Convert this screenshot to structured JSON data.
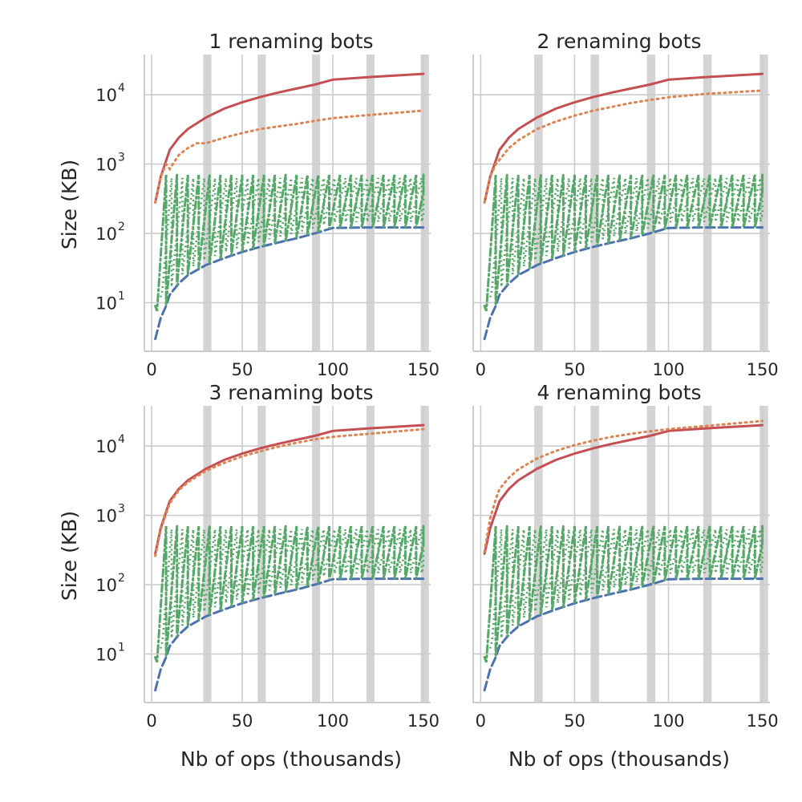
{
  "chart_data": [
    {
      "type": "line",
      "title": "1 renaming bots",
      "xlabel": "",
      "ylabel": "Size (KB)",
      "x_ticks": [
        "0",
        "50",
        "100",
        "150"
      ],
      "y_ticks": [
        {
          "base": "10",
          "exp": "1"
        },
        {
          "base": "10",
          "exp": "2"
        },
        {
          "base": "10",
          "exp": "3"
        },
        {
          "base": "10",
          "exp": "4"
        }
      ],
      "xlim": [
        -4,
        154
      ],
      "ylim_log10": [
        0.3,
        4.58
      ],
      "y_scale": "log",
      "grid": true,
      "shaded_x_ranges": [
        [
          28.5,
          33
        ],
        [
          58.5,
          63
        ],
        [
          88.5,
          93
        ],
        [
          118.5,
          123
        ],
        [
          148.5,
          153
        ]
      ],
      "series": [
        {
          "style": "solid",
          "color": "#c44e52",
          "x": [
            2,
            5,
            10,
            15,
            20,
            30,
            40,
            50,
            60,
            70,
            80,
            90,
            100,
            120,
            150
          ],
          "y": [
            280,
            650,
            1600,
            2400,
            3200,
            4700,
            6300,
            7800,
            9300,
            10800,
            12300,
            14000,
            16500,
            18000,
            20000
          ]
        },
        {
          "style": "dotted",
          "color": "#dd8452",
          "x": [
            2,
            5,
            8,
            10,
            15,
            20,
            25,
            30,
            40,
            50,
            60,
            70,
            80,
            90,
            100,
            120,
            150
          ],
          "y": [
            280,
            650,
            1000,
            850,
            1350,
            1700,
            2000,
            2000,
            2400,
            2800,
            3200,
            3500,
            3800,
            4200,
            4600,
            5100,
            5900
          ]
        },
        {
          "style": "dashed",
          "color": "#4c72b0",
          "x": [
            2,
            5,
            8,
            10,
            15,
            20,
            30,
            40,
            50,
            60,
            70,
            80,
            90,
            100,
            120,
            150
          ],
          "y": [
            3,
            6,
            9,
            13,
            19,
            25,
            35,
            44,
            54,
            64,
            74,
            85,
            100,
            120,
            122,
            122
          ]
        },
        {
          "style": "dashdot",
          "color": "#55a868",
          "name": "",
          "sawtooth": {
            "period": 6,
            "start_x": 2,
            "end_x": 150,
            "peak": 700
          }
        }
      ]
    },
    {
      "type": "line",
      "title": "2 renaming bots",
      "xlabel": "",
      "ylabel": "",
      "x_ticks": [
        "0",
        "50",
        "100",
        "150"
      ],
      "y_ticks": [],
      "xlim": [
        -4,
        154
      ],
      "ylim_log10": [
        0.3,
        4.58
      ],
      "y_scale": "log",
      "grid": true,
      "shaded_x_ranges": [
        [
          28.5,
          33
        ],
        [
          58.5,
          63
        ],
        [
          88.5,
          93
        ],
        [
          118.5,
          123
        ],
        [
          148.5,
          153
        ]
      ],
      "series": [
        {
          "style": "solid",
          "color": "#c44e52",
          "x": [
            2,
            5,
            10,
            15,
            20,
            30,
            40,
            50,
            60,
            70,
            80,
            90,
            100,
            120,
            150
          ],
          "y": [
            280,
            650,
            1600,
            2400,
            3200,
            4700,
            6300,
            7800,
            9300,
            10800,
            12300,
            14000,
            16500,
            18000,
            20000
          ]
        },
        {
          "style": "dotted",
          "color": "#dd8452",
          "x": [
            2,
            5,
            8,
            10,
            15,
            20,
            30,
            40,
            50,
            60,
            70,
            80,
            90,
            100,
            120,
            150
          ],
          "y": [
            280,
            650,
            1000,
            1150,
            1700,
            2200,
            3200,
            4100,
            5000,
            5900,
            6700,
            7600,
            8400,
            9200,
            10300,
            11500
          ]
        },
        {
          "style": "dashed",
          "color": "#4c72b0",
          "x": [
            2,
            5,
            8,
            10,
            15,
            20,
            30,
            40,
            50,
            60,
            70,
            80,
            90,
            100,
            120,
            150
          ],
          "y": [
            3,
            6,
            9,
            13,
            19,
            25,
            35,
            44,
            54,
            64,
            74,
            85,
            100,
            120,
            122,
            122
          ]
        },
        {
          "style": "dashdot",
          "color": "#55a868",
          "name": "",
          "sawtooth": {
            "period": 6,
            "start_x": 2,
            "end_x": 150,
            "peak": 700
          }
        }
      ]
    },
    {
      "type": "line",
      "title": "3 renaming bots",
      "xlabel": "Nb of ops (thousands)",
      "ylabel": "Size (KB)",
      "x_ticks": [
        "0",
        "50",
        "100",
        "150"
      ],
      "y_ticks": [
        {
          "base": "10",
          "exp": "1"
        },
        {
          "base": "10",
          "exp": "2"
        },
        {
          "base": "10",
          "exp": "3"
        },
        {
          "base": "10",
          "exp": "4"
        }
      ],
      "xlim": [
        -4,
        154
      ],
      "ylim_log10": [
        0.3,
        4.58
      ],
      "y_scale": "log",
      "grid": true,
      "shaded_x_ranges": [
        [
          28.5,
          33
        ],
        [
          58.5,
          63
        ],
        [
          88.5,
          93
        ],
        [
          118.5,
          123
        ],
        [
          148.5,
          153
        ]
      ],
      "series": [
        {
          "style": "solid",
          "color": "#c44e52",
          "x": [
            2,
            5,
            10,
            15,
            20,
            30,
            40,
            50,
            60,
            70,
            80,
            90,
            100,
            120,
            150
          ],
          "y": [
            280,
            650,
            1600,
            2400,
            3200,
            4700,
            6300,
            7800,
            9300,
            10800,
            12300,
            14000,
            16500,
            18000,
            20000
          ]
        },
        {
          "style": "dotted",
          "color": "#dd8452",
          "x": [
            2,
            5,
            8,
            10,
            15,
            20,
            30,
            40,
            50,
            60,
            70,
            80,
            90,
            100,
            120,
            150
          ],
          "y": [
            260,
            620,
            1050,
            1500,
            2300,
            3000,
            4400,
            5700,
            7100,
            8400,
            9800,
            11100,
            12500,
            13600,
            15000,
            17500
          ]
        },
        {
          "style": "dashed",
          "color": "#4c72b0",
          "x": [
            2,
            5,
            8,
            10,
            15,
            20,
            30,
            40,
            50,
            60,
            70,
            80,
            90,
            100,
            120,
            150
          ],
          "y": [
            3,
            6,
            9,
            13,
            19,
            25,
            35,
            44,
            54,
            64,
            74,
            85,
            100,
            120,
            122,
            122
          ]
        },
        {
          "style": "dashdot",
          "color": "#55a868",
          "name": "",
          "sawtooth": {
            "period": 6,
            "start_x": 2,
            "end_x": 150,
            "peak": 700
          }
        }
      ]
    },
    {
      "type": "line",
      "title": "4 renaming bots",
      "xlabel": "Nb of ops (thousands)",
      "ylabel": "",
      "x_ticks": [
        "0",
        "50",
        "100",
        "150"
      ],
      "y_ticks": [],
      "xlim": [
        -4,
        154
      ],
      "ylim_log10": [
        0.3,
        4.58
      ],
      "y_scale": "log",
      "grid": true,
      "shaded_x_ranges": [
        [
          28.5,
          33
        ],
        [
          58.5,
          63
        ],
        [
          88.5,
          93
        ],
        [
          118.5,
          123
        ],
        [
          148.5,
          153
        ]
      ],
      "series": [
        {
          "style": "solid",
          "color": "#c44e52",
          "x": [
            2,
            5,
            10,
            15,
            20,
            30,
            40,
            50,
            60,
            70,
            80,
            90,
            100,
            120,
            150
          ],
          "y": [
            280,
            650,
            1600,
            2400,
            3200,
            4700,
            6300,
            7800,
            9300,
            10800,
            12300,
            14000,
            16500,
            18000,
            20000
          ]
        },
        {
          "style": "dotted",
          "color": "#dd8452",
          "x": [
            2,
            5,
            8,
            10,
            15,
            20,
            30,
            40,
            50,
            60,
            70,
            80,
            90,
            100,
            120,
            150
          ],
          "y": [
            300,
            900,
            1700,
            2400,
            3500,
            4600,
            6600,
            8500,
            10300,
            12000,
            13600,
            15000,
            16300,
            17500,
            19500,
            23000
          ]
        },
        {
          "style": "dashed",
          "color": "#4c72b0",
          "x": [
            2,
            5,
            8,
            10,
            15,
            20,
            30,
            40,
            50,
            60,
            70,
            80,
            90,
            100,
            120,
            150
          ],
          "y": [
            3,
            6,
            9,
            13,
            19,
            25,
            35,
            44,
            54,
            64,
            74,
            85,
            100,
            120,
            122,
            122
          ]
        },
        {
          "style": "dashdot",
          "color": "#55a868",
          "name": "",
          "sawtooth": {
            "period": 6,
            "start_x": 2,
            "end_x": 150,
            "peak": 700
          }
        }
      ]
    }
  ]
}
